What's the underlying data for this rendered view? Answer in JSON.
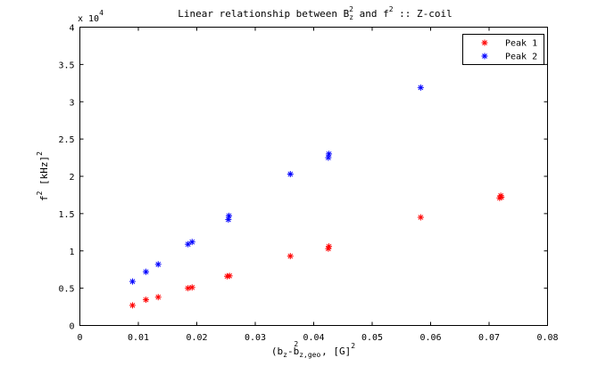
{
  "chart_data": {
    "type": "scatter",
    "title": {
      "prefix": "Linear relationship between B",
      "sub1": "z",
      "sup1": "2",
      "mid": " and f",
      "sup2": "2",
      "suffix": " :: Z-coil"
    },
    "xlabel": {
      "open": "(b",
      "sub1": "z",
      "mid": "-b",
      "sub2": "z,geo",
      "sup2": "2",
      "close": ", [G]",
      "sup3": "2"
    },
    "ylabel": {
      "f": "f",
      "sup1": "2",
      "unit": " [kHz]",
      "sup2": "2"
    },
    "y_multiplier": {
      "base": "x 10",
      "exponent": "4"
    },
    "xlim": [
      0,
      0.08
    ],
    "ylim": [
      0,
      40000
    ],
    "x_ticks": [
      0,
      0.01,
      0.02,
      0.03,
      0.04,
      0.05,
      0.06,
      0.07,
      0.08
    ],
    "x_tick_labels": [
      "0",
      "0.01",
      "0.02",
      "0.03",
      "0.04",
      "0.05",
      "0.06",
      "0.07",
      "0.08"
    ],
    "y_ticks": [
      0,
      5000,
      10000,
      15000,
      20000,
      25000,
      30000,
      35000,
      40000
    ],
    "y_tick_labels": [
      "0",
      "0.5",
      "1",
      "1.5",
      "2",
      "2.5",
      "3",
      "3.5",
      "4"
    ],
    "grid": false,
    "legend_position": "top-right",
    "series": [
      {
        "name": "Peak 1",
        "color": "#ff0000",
        "marker": "asterisk",
        "points": [
          [
            0.009,
            2700
          ],
          [
            0.0113,
            3450
          ],
          [
            0.0134,
            3800
          ],
          [
            0.0185,
            5000
          ],
          [
            0.0192,
            5100
          ],
          [
            0.0252,
            6600
          ],
          [
            0.0256,
            6650
          ],
          [
            0.036,
            9300
          ],
          [
            0.0425,
            10300
          ],
          [
            0.0426,
            10600
          ],
          [
            0.0583,
            14500
          ],
          [
            0.0718,
            17100
          ],
          [
            0.072,
            17400
          ],
          [
            0.0721,
            17200
          ]
        ]
      },
      {
        "name": "Peak 2",
        "color": "#0000ff",
        "marker": "asterisk",
        "points": [
          [
            0.009,
            5900
          ],
          [
            0.0113,
            7200
          ],
          [
            0.0134,
            8200
          ],
          [
            0.0185,
            10900
          ],
          [
            0.0192,
            11200
          ],
          [
            0.0254,
            14200
          ],
          [
            0.0255,
            14700
          ],
          [
            0.036,
            20300
          ],
          [
            0.0425,
            22500
          ],
          [
            0.0426,
            23000
          ],
          [
            0.0583,
            31900
          ]
        ]
      }
    ]
  }
}
